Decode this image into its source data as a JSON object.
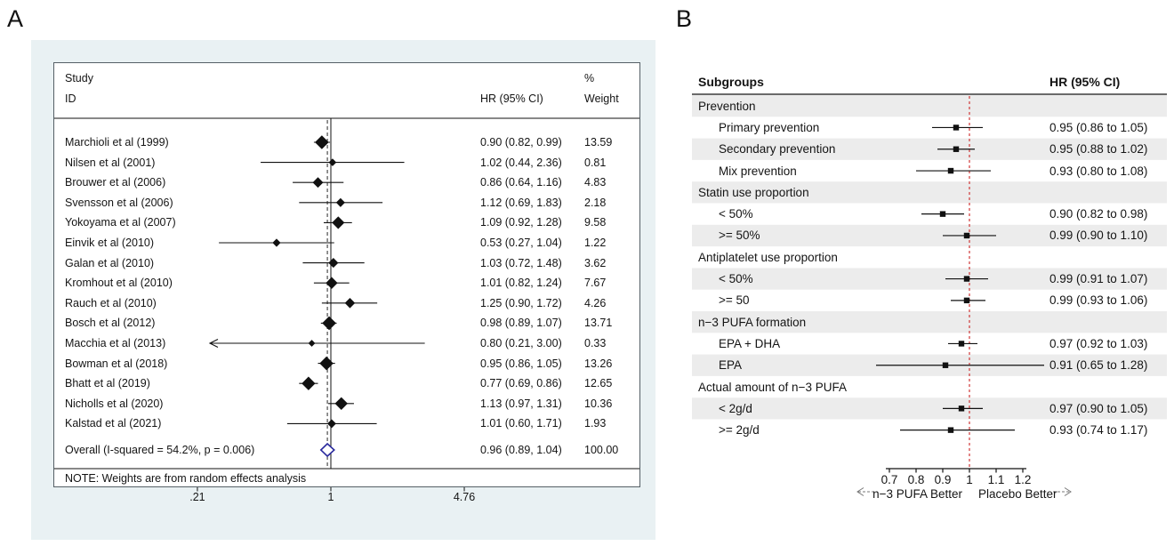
{
  "colors": {
    "panel_a_bg": "#e9f1f3",
    "plot_border": "#556066",
    "marker_black": "#111111",
    "diamond": "#2b2b9e",
    "reference_red": "#cc2424",
    "band_gray": "#ececec"
  },
  "chart_data": [
    {
      "id": "A",
      "panel_label": "A",
      "type": "forest",
      "scale": "log",
      "xlim": [
        0.21,
        4.76
      ],
      "axis_ticks": [
        0.21,
        1,
        4.76
      ],
      "axis_tick_labels": [
        ".21",
        "1",
        "4.76"
      ],
      "null_line": 1,
      "columns": {
        "study": "Study",
        "id": "ID",
        "hr": "HR (95% CI)",
        "pct": "%",
        "weight": "Weight"
      },
      "note": "NOTE: Weights are from random effects analysis",
      "studies": [
        {
          "label": "Marchioli et al (1999)",
          "hr": 0.9,
          "lo": 0.82,
          "hi": 0.99,
          "hr_text": "0.90 (0.82, 0.99)",
          "weight": 13.59,
          "weight_text": "13.59"
        },
        {
          "label": "Nilsen et al (2001)",
          "hr": 1.02,
          "lo": 0.44,
          "hi": 2.36,
          "hr_text": "1.02 (0.44, 2.36)",
          "weight": 0.81,
          "weight_text": "0.81"
        },
        {
          "label": "Brouwer et al (2006)",
          "hr": 0.86,
          "lo": 0.64,
          "hi": 1.16,
          "hr_text": "0.86 (0.64, 1.16)",
          "weight": 4.83,
          "weight_text": "4.83"
        },
        {
          "label": "Svensson et al (2006)",
          "hr": 1.12,
          "lo": 0.69,
          "hi": 1.83,
          "hr_text": "1.12 (0.69, 1.83)",
          "weight": 2.18,
          "weight_text": "2.18"
        },
        {
          "label": "Yokoyama et al (2007)",
          "hr": 1.09,
          "lo": 0.92,
          "hi": 1.28,
          "hr_text": "1.09 (0.92, 1.28)",
          "weight": 9.58,
          "weight_text": "9.58"
        },
        {
          "label": "Einvik et al (2010)",
          "hr": 0.53,
          "lo": 0.27,
          "hi": 1.04,
          "hr_text": "0.53 (0.27, 1.04)",
          "weight": 1.22,
          "weight_text": "1.22"
        },
        {
          "label": "Galan et al (2010)",
          "hr": 1.03,
          "lo": 0.72,
          "hi": 1.48,
          "hr_text": "1.03 (0.72, 1.48)",
          "weight": 3.62,
          "weight_text": "3.62"
        },
        {
          "label": "Kromhout et al (2010)",
          "hr": 1.01,
          "lo": 0.82,
          "hi": 1.24,
          "hr_text": "1.01 (0.82, 1.24)",
          "weight": 7.67,
          "weight_text": "7.67"
        },
        {
          "label": "Rauch et al (2010)",
          "hr": 1.25,
          "lo": 0.9,
          "hi": 1.72,
          "hr_text": "1.25 (0.90, 1.72)",
          "weight": 4.26,
          "weight_text": "4.26"
        },
        {
          "label": "Bosch et al (2012)",
          "hr": 0.98,
          "lo": 0.89,
          "hi": 1.07,
          "hr_text": "0.98 (0.89, 1.07)",
          "weight": 13.71,
          "weight_text": "13.71"
        },
        {
          "label": "Macchia et al (2013)",
          "hr": 0.8,
          "lo": 0.21,
          "hi": 3.0,
          "hr_text": "0.80 (0.21, 3.00)",
          "weight": 0.33,
          "weight_text": "0.33",
          "clipped_left": true
        },
        {
          "label": "Bowman et al (2018)",
          "hr": 0.95,
          "lo": 0.86,
          "hi": 1.05,
          "hr_text": "0.95 (0.86, 1.05)",
          "weight": 13.26,
          "weight_text": "13.26"
        },
        {
          "label": "Bhatt et al (2019)",
          "hr": 0.77,
          "lo": 0.69,
          "hi": 0.86,
          "hr_text": "0.77 (0.69, 0.86)",
          "weight": 12.65,
          "weight_text": "12.65"
        },
        {
          "label": "Nicholls et al (2020)",
          "hr": 1.13,
          "lo": 0.97,
          "hi": 1.31,
          "hr_text": "1.13 (0.97, 1.31)",
          "weight": 10.36,
          "weight_text": "10.36"
        },
        {
          "label": "Kalstad et al (2021)",
          "hr": 1.01,
          "lo": 0.6,
          "hi": 1.71,
          "hr_text": "1.01 (0.60, 1.71)",
          "weight": 1.93,
          "weight_text": "1.93"
        }
      ],
      "overall": {
        "label": "Overall (I-squared = 54.2%, p = 0.006)",
        "hr": 0.96,
        "lo": 0.89,
        "hi": 1.04,
        "hr_text": "0.96 (0.89, 1.04)",
        "weight_text": "100.00"
      }
    },
    {
      "id": "B",
      "panel_label": "B",
      "type": "forest",
      "scale": "linear",
      "xlim": [
        0.7,
        1.2
      ],
      "axis_ticks": [
        0.7,
        0.8,
        0.9,
        1,
        1.1,
        1.2
      ],
      "axis_tick_labels": [
        "0.7",
        "0.8",
        "0.9",
        "1",
        "1.1",
        "1.2"
      ],
      "null_line": 1,
      "columns": {
        "subgroups": "Subgroups",
        "hr": "HR (95% CI)"
      },
      "left_label": "n−3 PUFA Better",
      "right_label": "Placebo Better",
      "rows": [
        {
          "type": "group",
          "label": "Prevention"
        },
        {
          "type": "item",
          "label": "Primary prevention",
          "hr": 0.95,
          "lo": 0.86,
          "hi": 1.05,
          "hr_text": "0.95 (0.86 to 1.05)"
        },
        {
          "type": "item",
          "label": "Secondary prevention",
          "hr": 0.95,
          "lo": 0.88,
          "hi": 1.02,
          "hr_text": "0.95 (0.88 to 1.02)"
        },
        {
          "type": "item",
          "label": "Mix prevention",
          "hr": 0.93,
          "lo": 0.8,
          "hi": 1.08,
          "hr_text": "0.93 (0.80 to 1.08)"
        },
        {
          "type": "group",
          "label": "Statin use proportion"
        },
        {
          "type": "item",
          "label": "< 50%",
          "hr": 0.9,
          "lo": 0.82,
          "hi": 0.98,
          "hr_text": "0.90 (0.82 to 0.98)"
        },
        {
          "type": "item",
          "label": ">= 50%",
          "hr": 0.99,
          "lo": 0.9,
          "hi": 1.1,
          "hr_text": "0.99 (0.90 to 1.10)"
        },
        {
          "type": "group",
          "label": "Antiplatelet use proportion"
        },
        {
          "type": "item",
          "label": "< 50%",
          "hr": 0.99,
          "lo": 0.91,
          "hi": 1.07,
          "hr_text": "0.99 (0.91 to 1.07)"
        },
        {
          "type": "item",
          "label": ">= 50",
          "hr": 0.99,
          "lo": 0.93,
          "hi": 1.06,
          "hr_text": "0.99 (0.93 to 1.06)"
        },
        {
          "type": "group",
          "label": "n−3 PUFA formation"
        },
        {
          "type": "item",
          "label": "EPA + DHA",
          "hr": 0.97,
          "lo": 0.92,
          "hi": 1.03,
          "hr_text": "0.97 (0.92 to 1.03)"
        },
        {
          "type": "item",
          "label": "EPA",
          "hr": 0.91,
          "lo": 0.65,
          "hi": 1.28,
          "hr_text": "0.91 (0.65 to 1.28)"
        },
        {
          "type": "group",
          "label": "Actual amount of n−3 PUFA"
        },
        {
          "type": "item",
          "label": "< 2g/d",
          "hr": 0.97,
          "lo": 0.9,
          "hi": 1.05,
          "hr_text": "0.97 (0.90 to 1.05)"
        },
        {
          "type": "item",
          "label": ">= 2g/d",
          "hr": 0.93,
          "lo": 0.74,
          "hi": 1.17,
          "hr_text": "0.93 (0.74 to 1.17)"
        }
      ]
    }
  ]
}
